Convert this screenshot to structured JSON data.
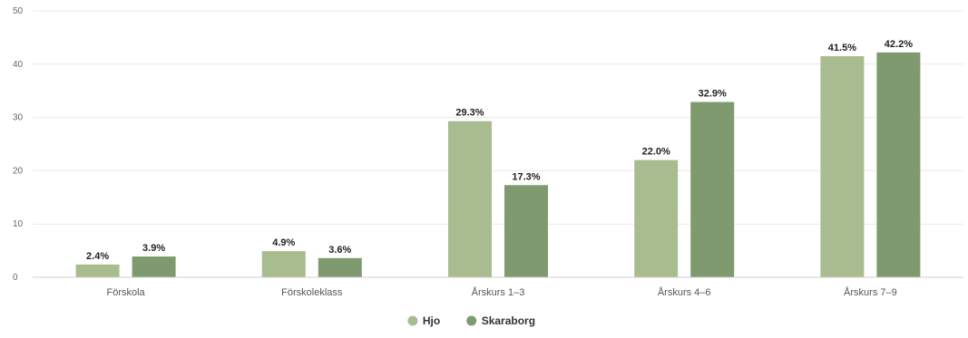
{
  "chart_data": {
    "type": "bar",
    "categories": [
      "Förskola",
      "Förskoleklass",
      "Årskurs 1–3",
      "Årskurs 4–6",
      "Årskurs 7–9"
    ],
    "series": [
      {
        "name": "Hjo",
        "values": [
          2.4,
          4.9,
          29.3,
          22.0,
          41.5
        ],
        "labels": [
          "2.4%",
          "4.9%",
          "29.3%",
          "22.0%",
          "41.5%"
        ],
        "color": "#a9bc8f"
      },
      {
        "name": "Skaraborg",
        "values": [
          3.9,
          3.6,
          17.3,
          32.9,
          42.2
        ],
        "labels": [
          "3.9%",
          "3.6%",
          "17.3%",
          "32.9%",
          "42.2%"
        ],
        "color": "#7f9a6f"
      }
    ],
    "yticks": [
      0,
      10,
      20,
      30,
      40,
      50
    ],
    "ylim": [
      0,
      50
    ],
    "grid": true,
    "legend_position": "bottom"
  }
}
